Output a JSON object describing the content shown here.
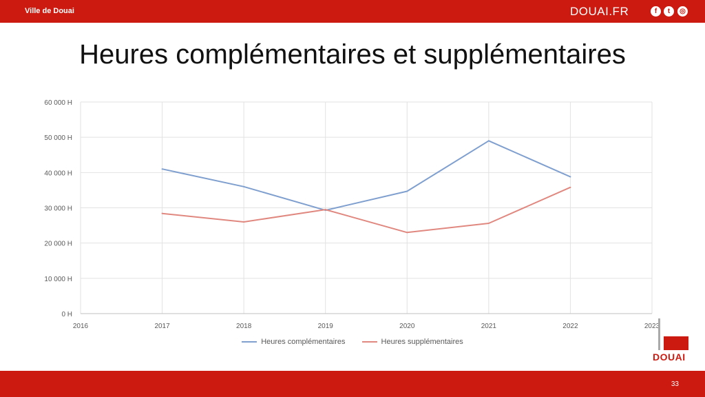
{
  "header": {
    "city": "Ville de Douai",
    "site": "DOUAI.FR",
    "social_icons": [
      "facebook-icon",
      "twitter-icon",
      "instagram-icon"
    ]
  },
  "slide": {
    "title": "Heures complémentaires et supplémentaires",
    "page_number": "33"
  },
  "logo": {
    "word": "DOUAI"
  },
  "colors": {
    "brand": "#cc1a10",
    "series1": "#7f9fcf",
    "series2": "#e0887f"
  },
  "chart_data": {
    "type": "line",
    "x_ticks": [
      "2016",
      "2017",
      "2018",
      "2019",
      "2020",
      "2021",
      "2022",
      "2023"
    ],
    "y_ticks": [
      "0 H",
      "10 000 H",
      "20 000 H",
      "30 000 H",
      "40 000 H",
      "50 000 H",
      "60 000 H"
    ],
    "xlim": [
      2016,
      2023
    ],
    "ylim": [
      0,
      60000
    ],
    "grid": true,
    "legend_position": "bottom",
    "series": [
      {
        "name": "Heures complémentaires",
        "color": "#7f9fcf",
        "x": [
          2017,
          2018,
          2019,
          2020,
          2021,
          2022
        ],
        "y": [
          41000,
          36000,
          29300,
          34700,
          49000,
          38800
        ]
      },
      {
        "name": "Heures supplémentaires",
        "color": "#e0887f",
        "x": [
          2017,
          2018,
          2019,
          2020,
          2021,
          2022
        ],
        "y": [
          28400,
          26000,
          29500,
          23000,
          25600,
          35800
        ]
      }
    ]
  }
}
